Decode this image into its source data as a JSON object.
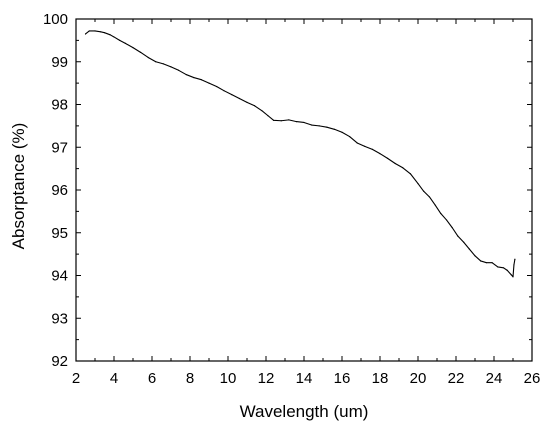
{
  "chart_data": {
    "type": "line",
    "title": "",
    "xlabel": "Wavelength (um)",
    "ylabel": "Absorptance (%)",
    "xlim": [
      2,
      26
    ],
    "ylim": [
      92,
      100
    ],
    "xticks": [
      2,
      4,
      6,
      8,
      10,
      12,
      14,
      16,
      18,
      20,
      22,
      24,
      26
    ],
    "yticks": [
      92,
      93,
      94,
      95,
      96,
      97,
      98,
      99,
      100
    ],
    "grid": false,
    "legend": "none",
    "line_color": "#000000",
    "series": [
      {
        "x": [
          2.5,
          2.7,
          3.0,
          3.3,
          3.5,
          3.8,
          4.0,
          4.3,
          4.6,
          5.0,
          5.4,
          5.8,
          6.2,
          6.6,
          7.0,
          7.4,
          7.8,
          8.2,
          8.6,
          9.0,
          9.4,
          9.8,
          10.2,
          10.6,
          11.0,
          11.4,
          11.8,
          12.1,
          12.4,
          12.8,
          13.2,
          13.6,
          14.0,
          14.4,
          14.8,
          15.2,
          15.6,
          16.0,
          16.4,
          16.8,
          17.2,
          17.6,
          18.0,
          18.4,
          18.8,
          19.2,
          19.6,
          20.0,
          20.3,
          20.6,
          20.9,
          21.2,
          21.5,
          21.8,
          22.1,
          22.4,
          22.7,
          23.0,
          23.3,
          23.6,
          23.9,
          24.2,
          24.5,
          24.7,
          24.9,
          25.0,
          25.05,
          25.1
        ],
        "values": [
          99.65,
          99.72,
          99.72,
          99.7,
          99.68,
          99.63,
          99.58,
          99.5,
          99.43,
          99.33,
          99.22,
          99.1,
          99.0,
          98.95,
          98.88,
          98.8,
          98.7,
          98.63,
          98.58,
          98.5,
          98.42,
          98.32,
          98.23,
          98.14,
          98.05,
          97.97,
          97.85,
          97.74,
          97.63,
          97.62,
          97.64,
          97.6,
          97.58,
          97.52,
          97.5,
          97.47,
          97.42,
          97.35,
          97.25,
          97.1,
          97.02,
          96.95,
          96.85,
          96.74,
          96.62,
          96.52,
          96.38,
          96.15,
          95.97,
          95.84,
          95.65,
          95.45,
          95.3,
          95.12,
          94.92,
          94.78,
          94.62,
          94.46,
          94.34,
          94.3,
          94.3,
          94.2,
          94.18,
          94.12,
          94.02,
          93.97,
          94.25,
          94.38
        ]
      }
    ]
  }
}
